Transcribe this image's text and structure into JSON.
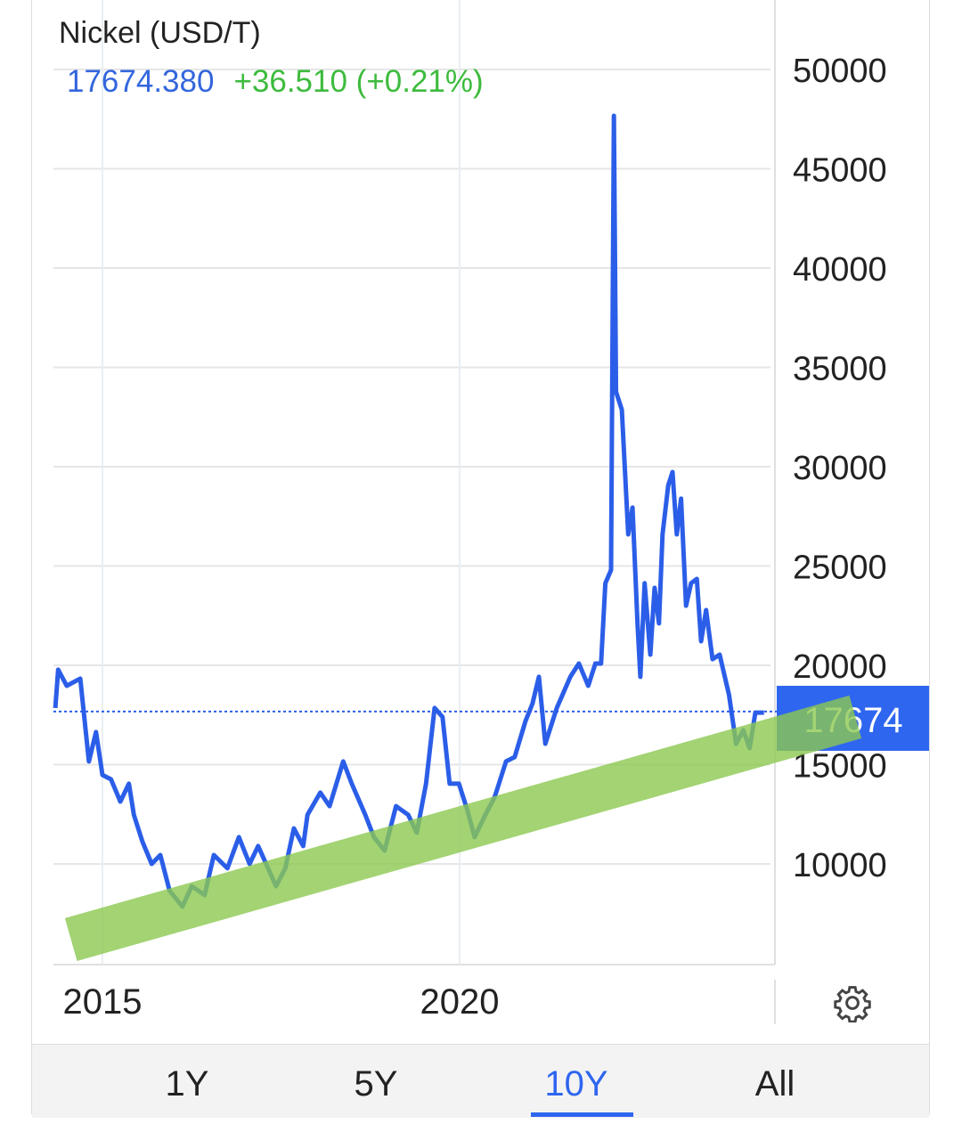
{
  "header": {
    "title": "Nickel (USD/T)",
    "price": "17674.380",
    "change": "+36.510 (+0.21%)"
  },
  "colors": {
    "line": "#2b5ee8",
    "price_text": "#3366dd",
    "change_positive": "#3dbb3d",
    "trend_band": "#8cc850",
    "price_tag": "#2f66f0",
    "active_tab": "#2f66f0"
  },
  "chart_data": {
    "type": "line",
    "title": "Nickel (USD/T)",
    "xlabel": "",
    "ylabel": "",
    "x_ticks": [
      "2015",
      "2020"
    ],
    "y_ticks": [
      "10000",
      "15000",
      "20000",
      "25000",
      "30000",
      "35000",
      "40000",
      "45000",
      "50000"
    ],
    "xlim": [
      2014.3,
      2024.3
    ],
    "ylim": [
      5000,
      50000
    ],
    "y_axis_position": "right",
    "grid": true,
    "last_value_tag": "17674",
    "last_value": 17674,
    "series": [
      {
        "x": [
          2014.34,
          2014.38,
          2014.5,
          2014.69,
          2014.81,
          2014.91,
          2015.0,
          2015.12,
          2015.25,
          2015.37,
          2015.44,
          2015.56,
          2015.69,
          2015.81,
          2015.94,
          2016.12,
          2016.25,
          2016.43,
          2016.56,
          2016.75,
          2016.91,
          2017.06,
          2017.18,
          2017.43,
          2017.56,
          2017.68,
          2017.81,
          2017.87,
          2018.05,
          2018.18,
          2018.37,
          2018.49,
          2018.68,
          2018.8,
          2018.95,
          2019.11,
          2019.28,
          2019.4,
          2019.53,
          2019.65,
          2019.76,
          2019.86,
          2019.99,
          2020.11,
          2020.21,
          2020.36,
          2020.49,
          2020.65,
          2020.77,
          2020.92,
          2021.02,
          2021.11,
          2021.2,
          2021.36,
          2021.55,
          2021.67,
          2021.8,
          2021.9,
          2021.98,
          2022.04,
          2022.12,
          2022.16,
          2022.19,
          2022.27,
          2022.36,
          2022.42,
          2022.49,
          2022.53,
          2022.59,
          2022.67,
          2022.73,
          2022.79,
          2022.84,
          2022.92,
          2022.98,
          2023.04,
          2023.1,
          2023.17,
          2023.24,
          2023.32,
          2023.38,
          2023.45,
          2023.54,
          2023.64,
          2023.77,
          2023.87,
          2023.97,
          2024.06,
          2024.14,
          2024.26
        ],
        "y": [
          17850,
          19780,
          18970,
          19330,
          15160,
          16640,
          14480,
          14260,
          13140,
          14040,
          12470,
          11120,
          10000,
          10450,
          8650,
          7850,
          8880,
          8430,
          10450,
          9780,
          11350,
          10000,
          10900,
          8880,
          9780,
          11790,
          10900,
          12470,
          13590,
          12910,
          15160,
          14040,
          12470,
          11350,
          10670,
          12910,
          12470,
          11570,
          14040,
          17850,
          17400,
          14040,
          14040,
          12690,
          11350,
          12470,
          13360,
          15160,
          15380,
          17170,
          18070,
          19420,
          16050,
          17850,
          19420,
          20090,
          18970,
          20090,
          20090,
          24130,
          24800,
          47670,
          33770,
          32870,
          26590,
          27940,
          22110,
          19420,
          24130,
          20540,
          23900,
          22110,
          26590,
          29060,
          29730,
          26590,
          28390,
          23000,
          24130,
          24350,
          21210,
          22780,
          20310,
          20540,
          18520,
          16050,
          16730,
          15830,
          17620,
          17620
        ]
      }
    ],
    "annotations": [
      {
        "type": "trend-band",
        "start": {
          "x": 2014.56,
          "y": 6190
        },
        "end": {
          "x": 2025.54,
          "y": 17400
        }
      }
    ]
  },
  "tabs": [
    {
      "label": "1Y",
      "active": false
    },
    {
      "label": "5Y",
      "active": false
    },
    {
      "label": "10Y",
      "active": true
    },
    {
      "label": "All",
      "active": false
    }
  ],
  "icons": {
    "settings": "gear-icon"
  }
}
